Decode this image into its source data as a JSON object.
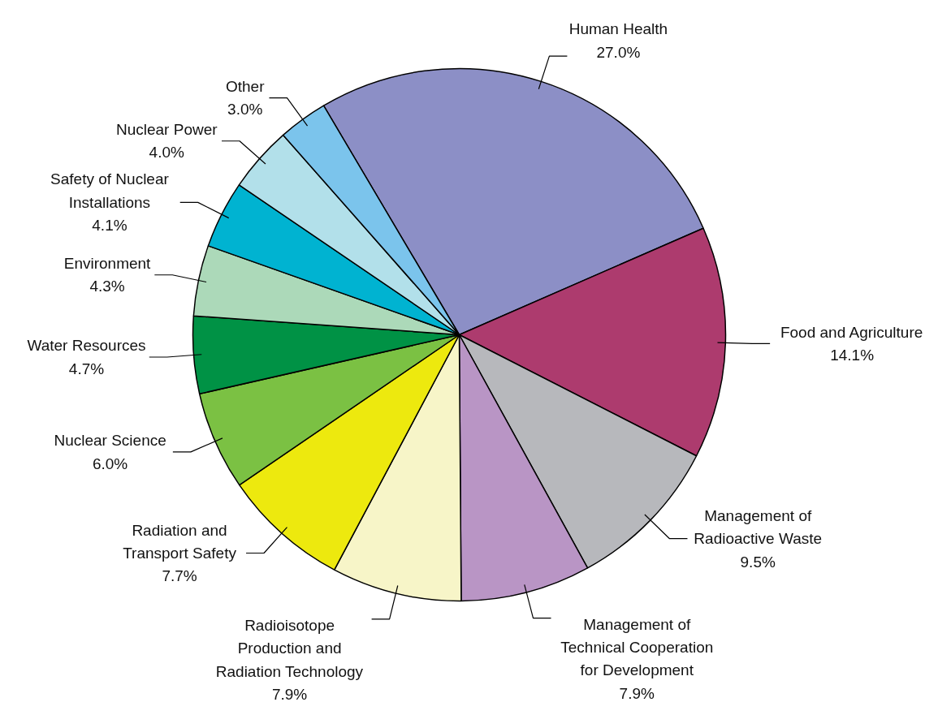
{
  "chart_data": {
    "type": "pie",
    "categories": [
      "Human Health",
      "Food and Agriculture",
      "Management of Radioactive Waste",
      "Management of Technical Cooperation for Development",
      "Radioisotope Production and Radiation Technology",
      "Radiation and Transport Safety",
      "Nuclear Science",
      "Water Resources",
      "Environment",
      "Safety of Nuclear Installations",
      "Nuclear Power",
      "Other"
    ],
    "values": [
      27.0,
      14.1,
      9.5,
      7.9,
      7.9,
      7.7,
      6.0,
      4.7,
      4.3,
      4.1,
      4.0,
      3.0
    ],
    "value_labels": [
      "27.0%",
      "14.1%",
      "9.5%",
      "7.9%",
      "7.9%",
      "7.7%",
      "6.0%",
      "4.7%",
      "4.3%",
      "4.1%",
      "4.0%",
      "3.0%"
    ],
    "colors": [
      "#8c8fc6",
      "#ad3b6e",
      "#b7b8bc",
      "#b995c5",
      "#f7f5c8",
      "#ede90e",
      "#7bc143",
      "#009245",
      "#acd9b9",
      "#00b3d1",
      "#b2e0ea",
      "#7bc4ec"
    ]
  }
}
